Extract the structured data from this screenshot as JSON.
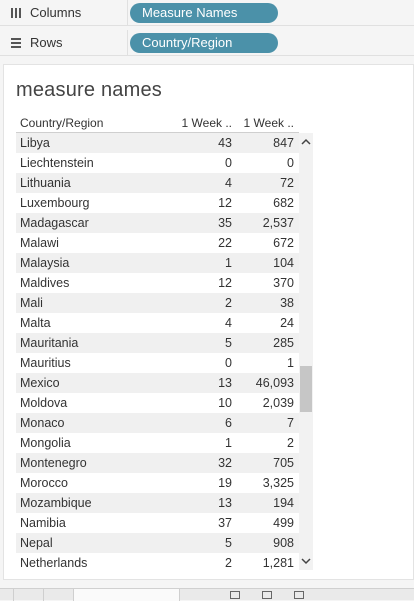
{
  "shelves": {
    "columns": {
      "label": "Columns",
      "pill": "Measure Names"
    },
    "rows": {
      "label": "Rows",
      "pill": "Country/Region"
    }
  },
  "sheet": {
    "title": "measure names",
    "headers": {
      "country": "Country/Region",
      "m1": "1 Week ..",
      "m2": "1 Week .."
    },
    "rows": [
      {
        "country": "Libya",
        "m1": "43",
        "m2": "847"
      },
      {
        "country": "Liechtenstein",
        "m1": "0",
        "m2": "0"
      },
      {
        "country": "Lithuania",
        "m1": "4",
        "m2": "72"
      },
      {
        "country": "Luxembourg",
        "m1": "12",
        "m2": "682"
      },
      {
        "country": "Madagascar",
        "m1": "35",
        "m2": "2,537"
      },
      {
        "country": "Malawi",
        "m1": "22",
        "m2": "672"
      },
      {
        "country": "Malaysia",
        "m1": "1",
        "m2": "104"
      },
      {
        "country": "Maldives",
        "m1": "12",
        "m2": "370"
      },
      {
        "country": "Mali",
        "m1": "2",
        "m2": "38"
      },
      {
        "country": "Malta",
        "m1": "4",
        "m2": "24"
      },
      {
        "country": "Mauritania",
        "m1": "5",
        "m2": "285"
      },
      {
        "country": "Mauritius",
        "m1": "0",
        "m2": "1"
      },
      {
        "country": "Mexico",
        "m1": "13",
        "m2": "46,093"
      },
      {
        "country": "Moldova",
        "m1": "10",
        "m2": "2,039"
      },
      {
        "country": "Monaco",
        "m1": "6",
        "m2": "7"
      },
      {
        "country": "Mongolia",
        "m1": "1",
        "m2": "2"
      },
      {
        "country": "Montenegro",
        "m1": "32",
        "m2": "705"
      },
      {
        "country": "Morocco",
        "m1": "19",
        "m2": "3,325"
      },
      {
        "country": "Mozambique",
        "m1": "13",
        "m2": "194"
      },
      {
        "country": "Namibia",
        "m1": "37",
        "m2": "499"
      },
      {
        "country": "Nepal",
        "m1": "5",
        "m2": "908"
      },
      {
        "country": "Netherlands",
        "m1": "2",
        "m2": "1,281"
      }
    ]
  },
  "colors": {
    "pill": "#4b91a9",
    "row_alt": "#f0f0f0"
  },
  "icons": {
    "columns": "columns-icon",
    "rows": "rows-icon",
    "scroll_up": "chevron-up-icon",
    "scroll_down": "chevron-down-icon"
  }
}
